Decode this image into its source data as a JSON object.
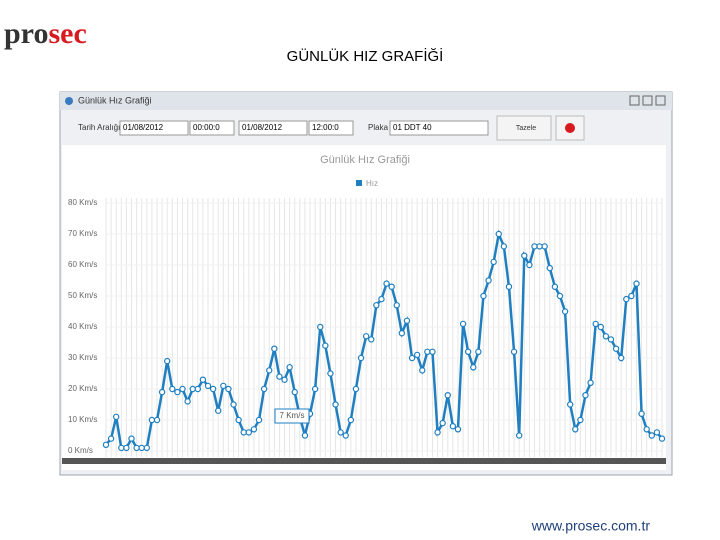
{
  "header": {
    "logo_dark": "pro",
    "logo_red": "sec",
    "title": "GÜNLÜK HIZ GRAFİĞİ"
  },
  "window": {
    "title": "Günlük Hız Grafiği",
    "toolbar": {
      "date_label": "Tarih Aralığı",
      "start_date": "01/08/2012",
      "start_time": "00:00:0",
      "end_date": "01/08/2012",
      "end_time": "12:00:0",
      "plate_label": "Plaka",
      "plate": "01 DDT 40",
      "refresh": "Tazele"
    }
  },
  "chart_data": {
    "type": "line",
    "title": "Günlük Hız Grafiği",
    "series": [
      {
        "name": "Hız",
        "color": "#1f7fc0",
        "values": [
          2,
          4,
          11,
          1,
          1,
          4,
          1,
          1,
          1,
          10,
          10,
          19,
          29,
          20,
          19,
          20,
          16,
          20,
          20,
          23,
          21,
          20,
          13,
          21,
          20,
          15,
          10,
          6,
          6,
          7,
          10,
          20,
          26,
          33,
          24,
          23,
          27,
          19,
          11,
          5,
          12,
          20,
          40,
          34,
          25,
          15,
          6,
          5,
          10,
          20,
          30,
          37,
          36,
          47,
          49,
          54,
          53,
          47,
          38,
          42,
          30,
          31,
          26,
          32,
          32,
          6,
          9,
          18,
          8,
          7,
          41,
          32,
          27,
          32,
          50,
          55,
          61,
          70,
          66,
          53,
          32,
          5,
          63,
          60,
          66,
          66,
          66,
          59,
          53,
          50,
          45,
          15,
          7,
          10,
          18,
          22,
          41,
          40,
          37,
          36,
          33,
          30,
          49,
          50,
          54,
          12,
          7,
          5,
          6,
          4
        ]
      }
    ],
    "ylim": [
      0,
      80
    ],
    "yticks": [
      {
        "value": 0,
        "label": "0 Km/s"
      },
      {
        "value": 10,
        "label": "10 Km/s"
      },
      {
        "value": 20,
        "label": "20 Km/s"
      },
      {
        "value": 30,
        "label": "30 Km/s"
      },
      {
        "value": 40,
        "label": "40 Km/s"
      },
      {
        "value": 50,
        "label": "50 Km/s"
      },
      {
        "value": 60,
        "label": "60 Km/s"
      },
      {
        "value": 70,
        "label": "70 Km/s"
      },
      {
        "value": 80,
        "label": "80 Km/s"
      }
    ],
    "grid": true,
    "tooltip": "7 Km/s"
  },
  "footer": {
    "url": "www.prosec.com.tr"
  }
}
